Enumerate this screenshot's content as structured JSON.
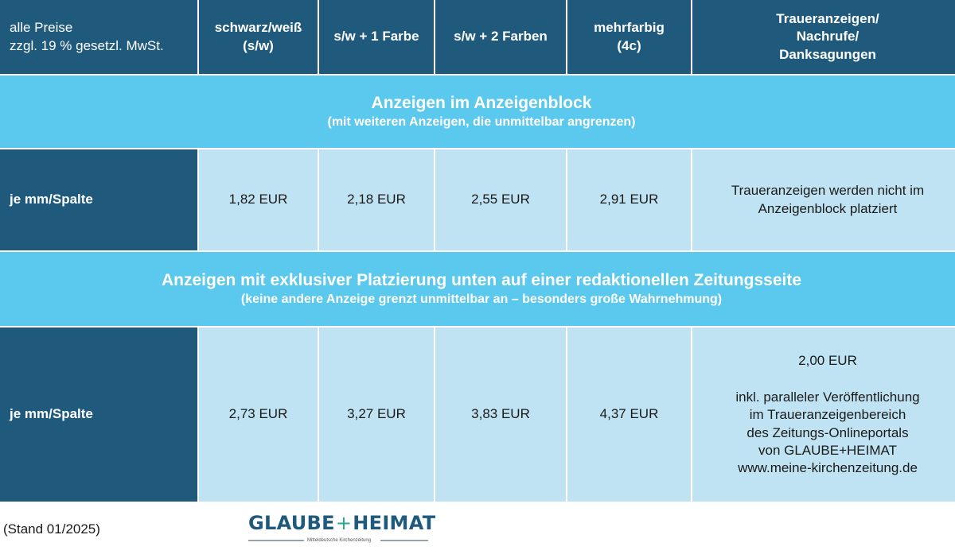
{
  "header": {
    "first_line1": "alle Preise",
    "first_line2": "zzgl. 19 % gesetzl. MwSt.",
    "col1_line1": "schwarz/weiß",
    "col1_line2": "(s/w)",
    "col2": "s/w + 1 Farbe",
    "col3": "s/w + 2 Farben",
    "col4_line1": "mehrfarbig",
    "col4_line2": "(4c)",
    "col5_line1": "Traueranzeigen/",
    "col5_line2": "Nachrufe/",
    "col5_line3": "Danksagungen"
  },
  "section1": {
    "title": "Anzeigen im Anzeigenblock",
    "subtitle": "(mit weiteren Anzeigen, die unmittelbar angrenzen)",
    "row_label": "je mm/Spalte",
    "values": [
      "1,82 EUR",
      "2,18 EUR",
      "2,55 EUR",
      "2,91 EUR"
    ],
    "note_line1": "Traueranzeigen werden nicht im",
    "note_line2": "Anzeigenblock platziert"
  },
  "section2": {
    "title": "Anzeigen mit exklusiver Platzierung unten auf einer redaktionellen Zeitungsseite",
    "subtitle": "(keine andere Anzeige grenzt unmittelbar an – besonders große Wahrnehmung)",
    "row_label": "je mm/Spalte",
    "values": [
      "2,73 EUR",
      "3,27 EUR",
      "3,83 EUR",
      "4,37 EUR"
    ],
    "note_price": "2,00 EUR",
    "note_line1": "inkl. paralleler Veröffentlichung",
    "note_line2": "im Traueranzeigenbereich",
    "note_line3": "des Zeitungs-Onlineportals",
    "note_line4": "von GLAUBE+HEIMAT",
    "note_line5": "www.meine-kirchenzeitung.de"
  },
  "footer": {
    "stand": "(Stand 01/2025)",
    "logo_word1": "GLAUBE",
    "logo_plus": "+",
    "logo_word2": "HEIMAT",
    "logo_sub": "Mitteldeutsche Kirchenzeitung"
  },
  "colors": {
    "header_dark": "#1f5a7d",
    "band": "#5bc8ee",
    "value_cell": "#bfe3f3",
    "logo_plus": "#2aa88a"
  }
}
